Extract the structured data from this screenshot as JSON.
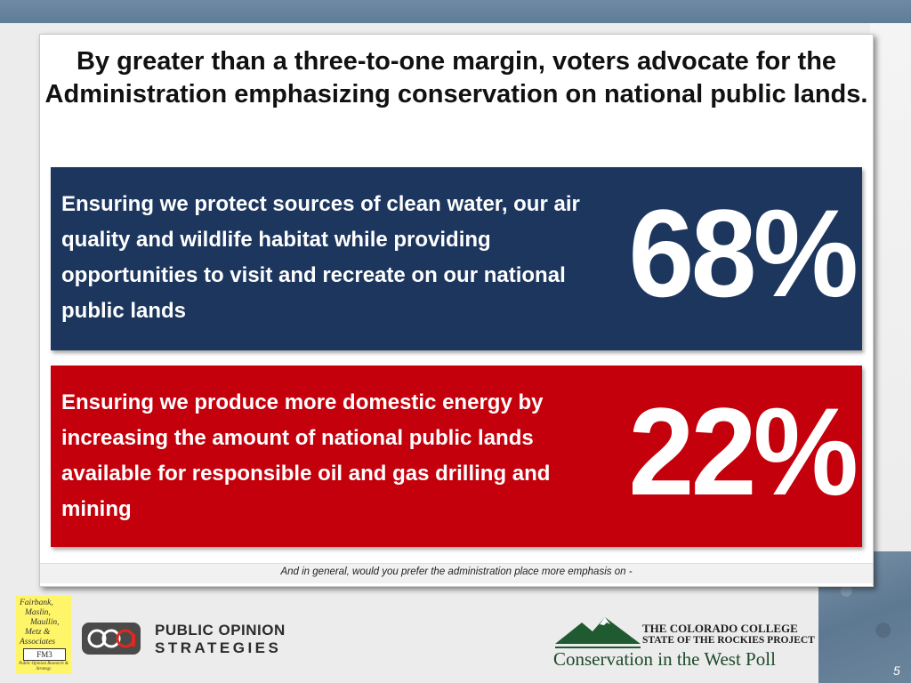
{
  "slide": {
    "headline": "By greater than a three-to-one margin, voters advocate for the Administration emphasizing conservation on national public lands.",
    "question": "And in general, would you prefer the administration place more emphasis on -",
    "page_number": "5"
  },
  "options": [
    {
      "text": "Ensuring we protect sources of clean water, our air quality and wildlife habitat while providing opportunities to visit and recreate on our national public lands",
      "percent": "68%",
      "color": "#1c365e"
    },
    {
      "text": "Ensuring we produce more domestic energy by increasing the amount of national public lands available for responsible oil and gas drilling and mining",
      "percent": "22%",
      "color": "#c4000c"
    }
  ],
  "logos": {
    "fm3": {
      "name_lines": [
        "Fairbank,",
        "Maslin,",
        "Maullin,",
        "Metz &",
        "Associates"
      ],
      "badge": "FM3",
      "tagline": "Public Opinion Research & Strategy",
      "color": "#fff568"
    },
    "pos": {
      "line1": "PUBLIC OPINION",
      "line2": "STRATEGIES",
      "mark": "poa"
    },
    "colorado_college": {
      "line1": "THE COLORADO COLLEGE",
      "line2": "STATE OF THE ROCKIES PROJECT",
      "line3": "Conservation in the West Poll",
      "icon": "mountain-icon"
    }
  }
}
